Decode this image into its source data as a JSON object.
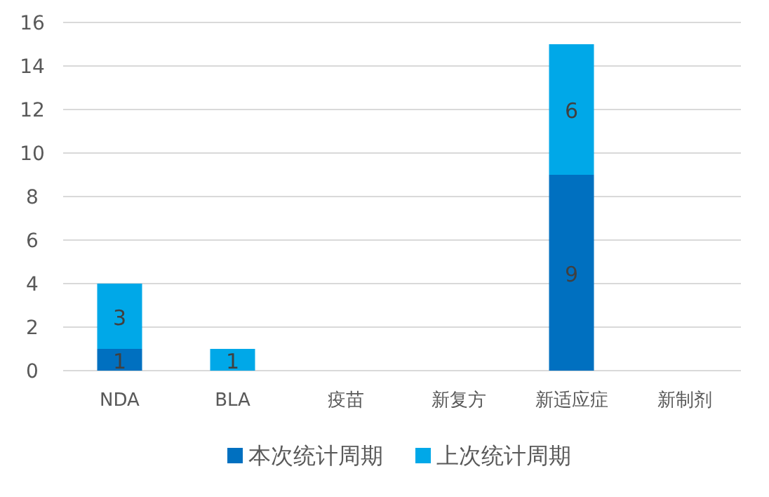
{
  "chart_data": {
    "type": "bar",
    "stacked": true,
    "categories": [
      "NDA",
      "BLA",
      "疫苗",
      "新复方",
      "新适应症",
      "新制剂"
    ],
    "series": [
      {
        "name": "本次统计周期",
        "color": "#0070c0",
        "values": [
          1,
          0,
          0,
          0,
          9,
          0
        ],
        "value_labels": [
          "1",
          null,
          null,
          null,
          "9",
          null
        ]
      },
      {
        "name": "上次统计周期",
        "color": "#00a8e8",
        "values": [
          3,
          1,
          0,
          0,
          6,
          0
        ],
        "value_labels": [
          "3",
          "1",
          null,
          null,
          "6",
          null
        ]
      }
    ],
    "ylim": [
      0,
      16
    ],
    "yticks": [
      0,
      2,
      4,
      6,
      8,
      10,
      12,
      14,
      16
    ],
    "grid": "y",
    "legend": "bottom"
  }
}
